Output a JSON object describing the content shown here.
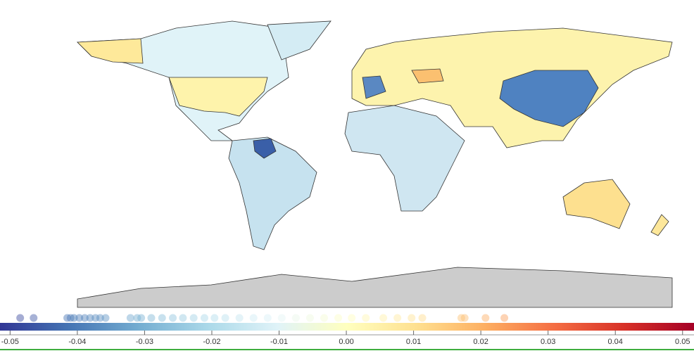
{
  "chart_data": {
    "type": "colorbar-strip",
    "xlim": [
      -0.0515,
      0.0517
    ],
    "xticks": [
      -0.05,
      -0.04,
      -0.03,
      -0.02,
      -0.01,
      {
        "value": 0,
        "label": "0.00"
      },
      0.01,
      0.02,
      0.03,
      0.04,
      0.05
    ],
    "colorscale": [
      "#313695",
      "#4575b4",
      "#74add1",
      "#abd9e9",
      "#e0f3f8",
      "#ffffbf",
      "#fee090",
      "#fdae61",
      "#f46d43",
      "#d73027",
      "#a50026"
    ],
    "values": [
      -0.0485,
      -0.0465,
      -0.0415,
      -0.041,
      -0.0405,
      -0.0397,
      -0.0389,
      -0.0381,
      -0.0373,
      -0.0366,
      -0.0358,
      -0.0321,
      -0.0311,
      -0.0305,
      -0.029,
      -0.0274,
      -0.0258,
      -0.0243,
      -0.0227,
      -0.0211,
      -0.0196,
      -0.018,
      -0.0159,
      -0.0138,
      -0.0117,
      -0.0096,
      -0.0075,
      -0.0054,
      -0.0033,
      -0.0012,
      0.0008,
      0.0029,
      0.0055,
      0.0076,
      0.0097,
      0.0113,
      0.0171,
      0.0176,
      0.0207,
      0.0235
    ]
  }
}
